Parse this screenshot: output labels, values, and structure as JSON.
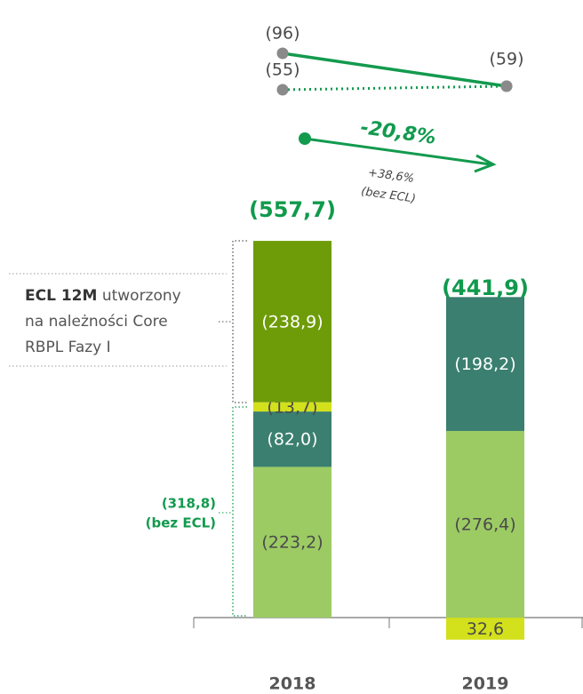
{
  "chart_data": {
    "type": "bar",
    "stacked": true,
    "categories": [
      "2018",
      "2019"
    ],
    "ylim": [
      42,
      -600
    ],
    "series": [
      {
        "color": "#9ccb64",
        "values": [
          -223.2,
          -276.4
        ],
        "value_labels": [
          "(223,2)",
          "(276,4)"
        ],
        "label_color": "#4a4a4a"
      },
      {
        "color": "#3a7f6f",
        "values": [
          -82.0,
          -198.2
        ],
        "value_labels": [
          "(82,0)",
          "(198,2)"
        ],
        "label_color": "#ffffff"
      },
      {
        "color": "#d3e01c",
        "values": [
          -13.7,
          32.6
        ],
        "value_labels": [
          "(13,7)",
          "32,6"
        ],
        "label_color": "#4a4a4a"
      },
      {
        "color": "#6e9c08",
        "values": [
          -238.9,
          null
        ],
        "value_labels": [
          "(238,9)",
          null
        ],
        "label_color": "#ffffff"
      }
    ],
    "totals": [
      -557.7,
      -441.9
    ],
    "total_labels": [
      "(557,7)",
      "(441,9)"
    ],
    "total_color": "#109a4c",
    "trend": {
      "series": [
        {
          "color": "#129a4e",
          "style": "solid",
          "values": [
            -96,
            -59
          ],
          "value_labels": [
            "(96)",
            "(59)"
          ]
        },
        {
          "color": "#129a4e",
          "style": "dotted",
          "values": [
            -55,
            -59
          ],
          "value_labels": [
            "(55)",
            null
          ]
        }
      ]
    },
    "annotations": {
      "change": "-20,8%",
      "change_ex": "+38,6%",
      "change_ex_note": "(bez ECL)",
      "ecl_bold": "ECL 12M",
      "ecl_line1": "utworzony",
      "ecl_line2": "na należności Core",
      "ecl_line3": "RBPL Fazy I",
      "ex_value": "(318,8)",
      "ex_note": "(bez ECL)"
    }
  }
}
